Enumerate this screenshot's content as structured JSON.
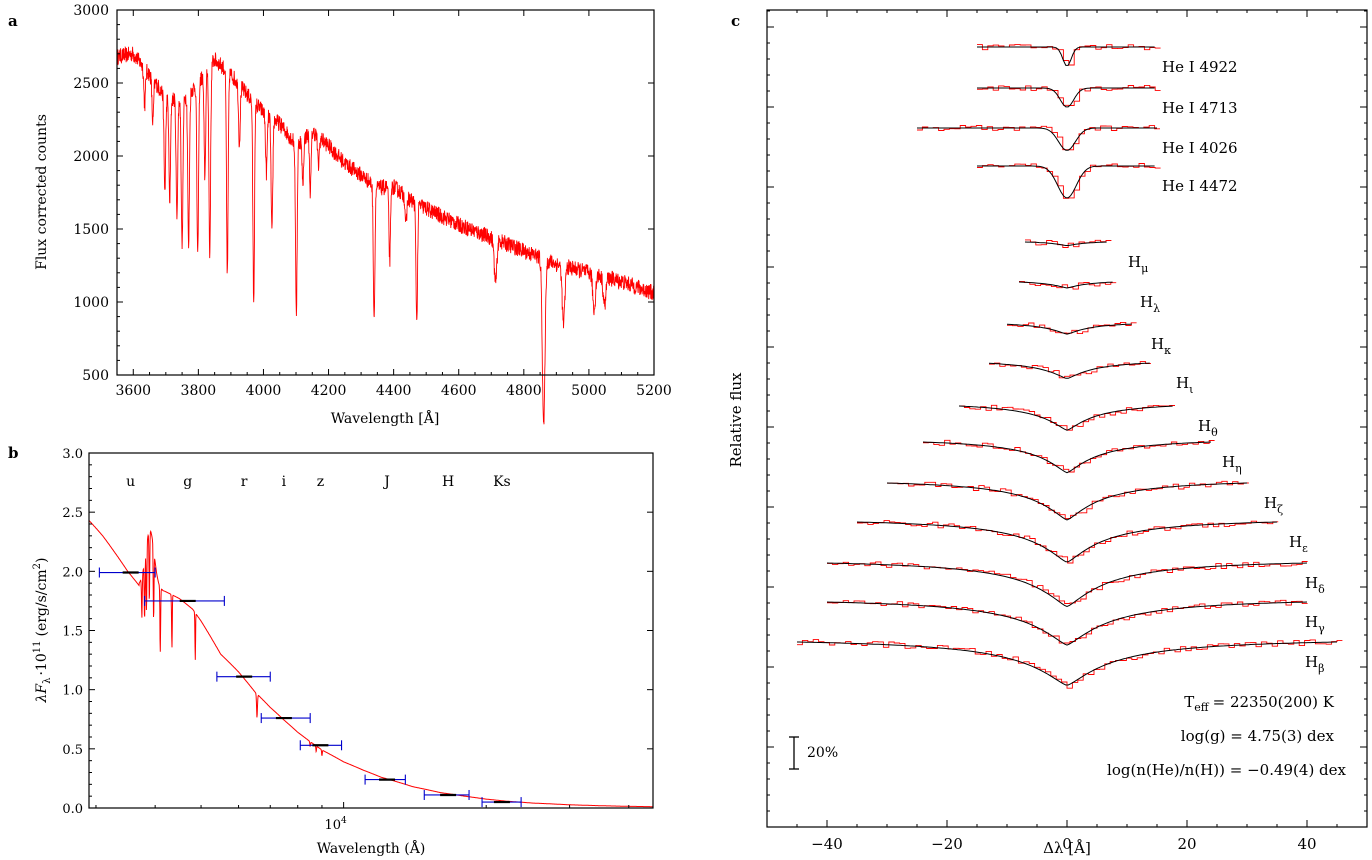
{
  "panels": {
    "a": {
      "letter": "a"
    },
    "b": {
      "letter": "b"
    },
    "c": {
      "letter": "c"
    }
  },
  "chart_data": [
    {
      "panel": "a",
      "type": "line",
      "xlabel": "Wavelength [Å]",
      "ylabel": "Flux corrected counts",
      "xlim": [
        3550,
        5200
      ],
      "ylim": [
        500,
        3000
      ],
      "xticks": [
        3600,
        3800,
        4000,
        4200,
        4400,
        4600,
        4800,
        5000,
        5200
      ],
      "yticks": [
        500,
        1000,
        1500,
        2000,
        2500,
        3000
      ],
      "grid": false,
      "line_color": "#ff0000",
      "continuum": [
        [
          3550,
          2680
        ],
        [
          3600,
          2700
        ],
        [
          3650,
          2560
        ],
        [
          3700,
          2400
        ],
        [
          3750,
          2380
        ],
        [
          3800,
          2500
        ],
        [
          3850,
          2660
        ],
        [
          3900,
          2560
        ],
        [
          3950,
          2420
        ],
        [
          4000,
          2300
        ],
        [
          4050,
          2220
        ],
        [
          4100,
          2080
        ],
        [
          4150,
          2170
        ],
        [
          4200,
          2070
        ],
        [
          4250,
          1950
        ],
        [
          4300,
          1870
        ],
        [
          4350,
          1780
        ],
        [
          4400,
          1790
        ],
        [
          4450,
          1700
        ],
        [
          4500,
          1640
        ],
        [
          4600,
          1530
        ],
        [
          4700,
          1440
        ],
        [
          4800,
          1350
        ],
        [
          4900,
          1260
        ],
        [
          5000,
          1200
        ],
        [
          5100,
          1140
        ],
        [
          5200,
          1060
        ]
      ],
      "absorption_lines": [
        [
          3635,
          250
        ],
        [
          3660,
          300
        ],
        [
          3697,
          650
        ],
        [
          3712,
          700
        ],
        [
          3734,
          800
        ],
        [
          3750,
          1000
        ],
        [
          3770,
          1050
        ],
        [
          3798,
          1200
        ],
        [
          3820,
          700
        ],
        [
          3835,
          1300
        ],
        [
          3889,
          1400
        ],
        [
          3926,
          400
        ],
        [
          3970,
          1350
        ],
        [
          4009,
          400
        ],
        [
          4026,
          800
        ],
        [
          4101,
          1150
        ],
        [
          4121,
          300
        ],
        [
          4144,
          400
        ],
        [
          4169,
          200
        ],
        [
          4340,
          900
        ],
        [
          4388,
          500
        ],
        [
          4438,
          200
        ],
        [
          4471,
          800
        ],
        [
          4713,
          300
        ],
        [
          4861,
          1150
        ],
        [
          4922,
          400
        ],
        [
          5016,
          250
        ],
        [
          5048,
          200
        ]
      ]
    },
    {
      "panel": "b",
      "type": "scatter",
      "xlabel": "Wavelength (Å)",
      "ylabel": "λF",
      "ylabel_sub": "λ",
      "ylabel_mid": "·10",
      "ylabel_exp": "11",
      "ylabel_unit": "(erg/s/cm",
      "ylabel_unit_exp": "2",
      "ylabel_unit_end": ")",
      "x_scale": "log",
      "xlim": [
        2900,
        45000
      ],
      "ylim": [
        0.0,
        3.0
      ],
      "yticks": [
        "0.0",
        "0.5",
        "1.0",
        "1.5",
        "2.0",
        "2.5",
        "3.0"
      ],
      "xtick_base": "10",
      "xtick_exp": "4",
      "grid": false,
      "filters": [
        "u",
        "g",
        "r",
        "i",
        "z",
        "J",
        "H",
        "Ks"
      ],
      "points": [
        {
          "band": "u",
          "x": 3551,
          "y": 1.99,
          "xmin": 3050,
          "xmax": 4000
        },
        {
          "band": "g",
          "x": 4686,
          "y": 1.75,
          "xmin": 3800,
          "xmax": 5600
        },
        {
          "band": "r",
          "x": 6166,
          "y": 1.11,
          "xmin": 5400,
          "xmax": 7000
        },
        {
          "band": "i",
          "x": 7480,
          "y": 0.76,
          "xmin": 6700,
          "xmax": 8500
        },
        {
          "band": "z",
          "x": 8932,
          "y": 0.53,
          "xmin": 8100,
          "xmax": 9900
        },
        {
          "band": "J",
          "x": 12350,
          "y": 0.24,
          "xmin": 11100,
          "xmax": 13500
        },
        {
          "band": "H",
          "x": 16620,
          "y": 0.11,
          "xmin": 14800,
          "xmax": 18400
        },
        {
          "band": "Ks",
          "x": 21590,
          "y": 0.05,
          "xmin": 19600,
          "xmax": 23700
        }
      ],
      "model_line_color": "#ff0000",
      "point_color": "#0000cc",
      "model": [
        [
          2900,
          2.43
        ],
        [
          3100,
          2.3
        ],
        [
          3300,
          2.15
        ],
        [
          3500,
          2.0
        ],
        [
          3700,
          1.88
        ],
        [
          4000,
          1.86
        ],
        [
          4200,
          1.83
        ],
        [
          4500,
          1.77
        ],
        [
          4800,
          1.68
        ],
        [
          5000,
          1.58
        ],
        [
          5500,
          1.3
        ],
        [
          6000,
          1.15
        ],
        [
          6500,
          0.98
        ],
        [
          7000,
          0.85
        ],
        [
          7500,
          0.74
        ],
        [
          8000,
          0.64
        ],
        [
          8500,
          0.56
        ],
        [
          9000,
          0.49
        ],
        [
          10000,
          0.39
        ],
        [
          11000,
          0.32
        ],
        [
          12000,
          0.26
        ],
        [
          13000,
          0.22
        ],
        [
          14000,
          0.18
        ],
        [
          16000,
          0.13
        ],
        [
          18000,
          0.1
        ],
        [
          20000,
          0.075
        ],
        [
          22000,
          0.058
        ],
        [
          25000,
          0.042
        ],
        [
          30000,
          0.027
        ],
        [
          35000,
          0.019
        ],
        [
          40000,
          0.014
        ],
        [
          45000,
          0.011
        ]
      ]
    },
    {
      "panel": "c",
      "type": "line",
      "xlabel": "Δλ [Å]",
      "ylabel": "Relative flux",
      "xlim": [
        -50,
        50
      ],
      "xticks": [
        "−40",
        "−20",
        "0",
        "20",
        "40"
      ],
      "xtick_values": [
        -40,
        -20,
        0,
        20,
        40
      ],
      "grid": false,
      "observed_color": "#ff0000",
      "model_color": "#000000",
      "scale_bar_label": "20%",
      "scale_bar_value": 0.2,
      "parameters": {
        "teff_label": "T",
        "teff_sub": "eff",
        "teff_value": "= 22350(200) K",
        "logg": "log(g)  = 4.75(3) dex",
        "loghe": "log(n(He)/n(H)) = −0.49(4) dex"
      },
      "series": [
        {
          "name": "He I 4922",
          "base": "He I 4922",
          "sub": "",
          "xrange": [
            -15,
            15
          ],
          "depth": 0.12,
          "width": 1.0
        },
        {
          "name": "He I 4713",
          "base": "He I 4713",
          "sub": "",
          "xrange": [
            -15,
            15
          ],
          "depth": 0.12,
          "width": 1.6
        },
        {
          "name": "He I 4026",
          "base": "He I 4026",
          "sub": "",
          "xrange": [
            -25,
            15
          ],
          "depth": 0.14,
          "width": 2.0
        },
        {
          "name": "He I 4472",
          "base": "He I 4472",
          "sub": "",
          "xrange": [
            -15,
            15
          ],
          "depth": 0.2,
          "width": 2.2
        },
        {
          "name": "Hμ",
          "base": "H",
          "sub": "μ",
          "xrange": [
            -7,
            7
          ],
          "depth": 0.03,
          "width": 3.0
        },
        {
          "name": "Hλ",
          "base": "H",
          "sub": "λ",
          "xrange": [
            -8,
            8
          ],
          "depth": 0.05,
          "width": 3.5
        },
        {
          "name": "Hκ",
          "base": "H",
          "sub": "κ",
          "xrange": [
            -10,
            11
          ],
          "depth": 0.08,
          "width": 4.0
        },
        {
          "name": "Hι",
          "base": "H",
          "sub": "ι",
          "xrange": [
            -13,
            14
          ],
          "depth": 0.12,
          "width": 4.5
        },
        {
          "name": "Hθ",
          "base": "H",
          "sub": "θ",
          "xrange": [
            -18,
            18
          ],
          "depth": 0.18,
          "width": 5.0
        },
        {
          "name": "Hη",
          "base": "H",
          "sub": "η",
          "xrange": [
            -24,
            24
          ],
          "depth": 0.22,
          "width": 5.5
        },
        {
          "name": "Hζ",
          "base": "H",
          "sub": "ζ",
          "xrange": [
            -30,
            30
          ],
          "depth": 0.26,
          "width": 6.0
        },
        {
          "name": "Hε",
          "base": "H",
          "sub": "ε",
          "xrange": [
            -35,
            35
          ],
          "depth": 0.28,
          "width": 6.5
        },
        {
          "name": "Hδ",
          "base": "H",
          "sub": "δ",
          "xrange": [
            -40,
            40
          ],
          "depth": 0.3,
          "width": 7.0
        },
        {
          "name": "Hγ",
          "base": "H",
          "sub": "γ",
          "xrange": [
            -40,
            40
          ],
          "depth": 0.3,
          "width": 7.5
        },
        {
          "name": "Hβ",
          "base": "H",
          "sub": "β",
          "xrange": [
            -45,
            45
          ],
          "depth": 0.3,
          "width": 8.0
        }
      ]
    }
  ]
}
